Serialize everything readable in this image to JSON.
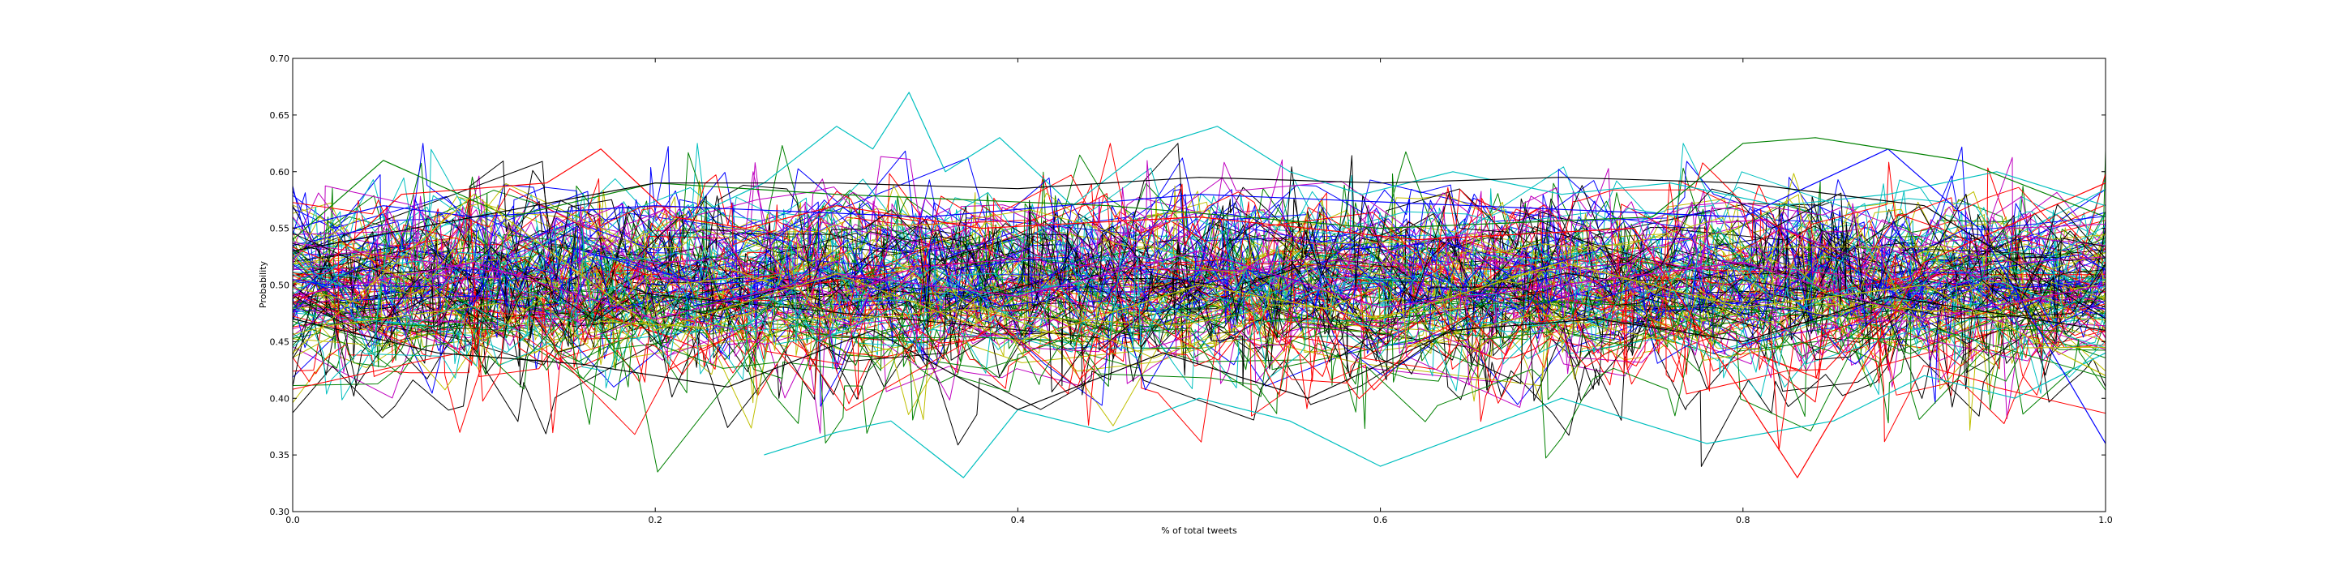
{
  "chart_data": {
    "type": "line",
    "title": "",
    "xlabel": "% of total tweets",
    "ylabel": "Probability",
    "xlim": [
      0.0,
      1.0
    ],
    "ylim": [
      0.3,
      0.7
    ],
    "grid": false,
    "legend": "none",
    "x_ticks": [
      0.0,
      0.2,
      0.4,
      0.6,
      0.8,
      1.0
    ],
    "x_tick_labels": [
      "0.0",
      "0.2",
      "0.4",
      "0.6",
      "0.8",
      "1.0"
    ],
    "y_ticks": [
      0.3,
      0.35,
      0.4,
      0.45,
      0.5,
      0.55,
      0.6,
      0.65,
      0.7
    ],
    "y_tick_labels": [
      "0.30",
      "0.35",
      "0.40",
      "0.45",
      "0.50",
      "0.55",
      "0.60",
      "0.65",
      "0.70"
    ],
    "color_cycle": [
      "#0000ff",
      "#008000",
      "#ff0000",
      "#00bfbf",
      "#bf00bf",
      "#bfbf00",
      "#000000"
    ],
    "series": [
      {
        "color": "#00bfbf",
        "x": [
          0.26,
          0.3,
          0.33,
          0.37,
          0.4,
          0.45,
          0.5,
          0.55,
          0.6,
          0.65,
          0.7,
          0.78,
          0.85,
          0.9,
          0.95,
          1.0
        ],
        "y": [
          0.35,
          0.37,
          0.38,
          0.33,
          0.39,
          0.37,
          0.4,
          0.38,
          0.34,
          0.37,
          0.4,
          0.36,
          0.38,
          0.42,
          0.4,
          0.44
        ]
      },
      {
        "color": "#00bfbf",
        "x": [
          0.22,
          0.26,
          0.3,
          0.32,
          0.34,
          0.36,
          0.39,
          0.43,
          0.47,
          0.51,
          0.55,
          0.59,
          0.64,
          0.7,
          0.76,
          0.82,
          0.88,
          0.94,
          1.0
        ],
        "y": [
          0.56,
          0.59,
          0.64,
          0.62,
          0.67,
          0.6,
          0.63,
          0.57,
          0.62,
          0.64,
          0.6,
          0.58,
          0.6,
          0.58,
          0.59,
          0.57,
          0.58,
          0.6,
          0.57
        ]
      },
      {
        "color": "#ff0000",
        "x": [
          0.02,
          0.06,
          0.1,
          0.14,
          0.17,
          0.21,
          0.25,
          0.3,
          0.38,
          0.5,
          0.62,
          0.74,
          0.83,
          0.9,
          1.0
        ],
        "y": [
          0.52,
          0.58,
          0.585,
          0.59,
          0.62,
          0.56,
          0.55,
          0.57,
          0.55,
          0.56,
          0.54,
          0.55,
          0.33,
          0.52,
          0.59
        ]
      },
      {
        "color": "#0000ff",
        "x": [
          0.0,
          0.05,
          0.1,
          0.2,
          0.35,
          0.5,
          0.65,
          0.8,
          0.88,
          0.93,
          1.0
        ],
        "y": [
          0.55,
          0.57,
          0.56,
          0.57,
          0.56,
          0.58,
          0.57,
          0.56,
          0.62,
          0.55,
          0.36
        ]
      },
      {
        "color": "#008000",
        "x": [
          0.0,
          0.05,
          0.12,
          0.2,
          0.3,
          0.45,
          0.6,
          0.75,
          0.8,
          0.84,
          0.92,
          1.0
        ],
        "y": [
          0.54,
          0.61,
          0.56,
          0.59,
          0.58,
          0.57,
          0.55,
          0.56,
          0.625,
          0.63,
          0.61,
          0.56
        ]
      },
      {
        "color": "#000000",
        "x": [
          0.0,
          0.1,
          0.2,
          0.3,
          0.4,
          0.5,
          0.6,
          0.7,
          0.8,
          0.9,
          1.0
        ],
        "y": [
          0.53,
          0.56,
          0.59,
          0.59,
          0.585,
          0.595,
          0.59,
          0.595,
          0.59,
          0.57,
          0.47
        ]
      },
      {
        "color": "#000000",
        "x": [
          0.0,
          0.08,
          0.16,
          0.24,
          0.32,
          0.4,
          0.48,
          0.56,
          0.64,
          0.72,
          0.8,
          0.88,
          0.96,
          1.0
        ],
        "y": [
          0.47,
          0.44,
          0.43,
          0.41,
          0.46,
          0.39,
          0.44,
          0.4,
          0.46,
          0.47,
          0.45,
          0.49,
          0.47,
          0.46
        ]
      },
      {
        "color": "#bf00bf",
        "x": [
          0.0,
          0.1,
          0.2,
          0.3,
          0.4,
          0.5,
          0.6,
          0.7,
          0.8,
          0.9,
          1.0
        ],
        "y": [
          0.49,
          0.52,
          0.47,
          0.51,
          0.49,
          0.53,
          0.48,
          0.5,
          0.52,
          0.47,
          0.5
        ]
      },
      {
        "color": "#bfbf00",
        "x": [
          0.0,
          0.1,
          0.2,
          0.3,
          0.4,
          0.5,
          0.6,
          0.7,
          0.8,
          0.9,
          1.0
        ],
        "y": [
          0.44,
          0.58,
          0.46,
          0.51,
          0.45,
          0.5,
          0.47,
          0.52,
          0.48,
          0.5,
          0.42
        ]
      }
    ],
    "noise_series": {
      "count": 140,
      "min_points": 30,
      "max_points": 110,
      "center": 0.495,
      "spread": 0.028,
      "jitter": 0.028,
      "clip": [
        0.335,
        0.625
      ],
      "seed": 20160514
    }
  }
}
